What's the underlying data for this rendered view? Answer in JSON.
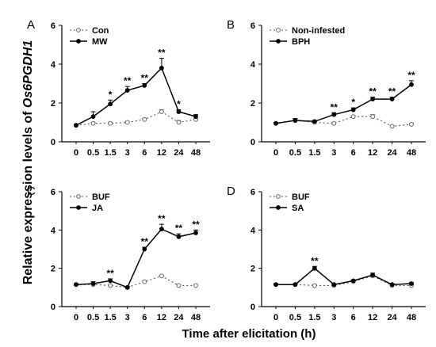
{
  "figure": {
    "ylabel_prefix": "Relative expression levels of ",
    "ylabel_gene": "Os6PGDH1",
    "xlabel": "Time after elicitation (h)"
  },
  "chart_data": [
    {
      "type": "line",
      "panel": "A",
      "categories": [
        "0",
        "0.5",
        "1.5",
        "3",
        "6",
        "12",
        "24",
        "48"
      ],
      "ylim": [
        0,
        6
      ],
      "yticks": [
        0,
        2,
        4,
        6
      ],
      "legend_position": "top-left",
      "series": [
        {
          "name": "Con",
          "style": "dotted-open-circle",
          "values": [
            0.85,
            0.95,
            0.95,
            1.0,
            1.15,
            1.55,
            1.0,
            1.15
          ],
          "errors": [
            0.05,
            0.05,
            0.05,
            0.05,
            0.05,
            0.1,
            0.1,
            0.05
          ]
        },
        {
          "name": "MW",
          "style": "solid-filled-circle",
          "values": [
            0.85,
            1.3,
            1.95,
            2.65,
            2.9,
            3.8,
            1.55,
            1.3
          ],
          "errors": [
            0.05,
            0.25,
            0.2,
            0.2,
            0.1,
            0.5,
            0.1,
            0.1
          ]
        }
      ],
      "significance": [
        "",
        "",
        "*",
        "**",
        "**",
        "**",
        "*",
        ""
      ]
    },
    {
      "type": "line",
      "panel": "B",
      "categories": [
        "0",
        "0.5",
        "1.5",
        "3",
        "6",
        "12",
        "24",
        "48"
      ],
      "ylim": [
        0,
        6
      ],
      "yticks": [
        0,
        2,
        4,
        6
      ],
      "legend_position": "top-left",
      "series": [
        {
          "name": "Non-infested",
          "style": "dotted-open-circle",
          "values": [
            0.95,
            1.1,
            1.0,
            0.95,
            1.3,
            1.3,
            0.8,
            0.9
          ],
          "errors": [
            0.05,
            0.05,
            0.05,
            0.05,
            0.05,
            0.1,
            0.05,
            0.05
          ]
        },
        {
          "name": "BPH",
          "style": "solid-filled-circle",
          "values": [
            0.95,
            1.1,
            1.05,
            1.4,
            1.65,
            2.2,
            2.2,
            2.95
          ],
          "errors": [
            0.05,
            0.1,
            0.05,
            0.1,
            0.1,
            0.1,
            0.1,
            0.2
          ]
        }
      ],
      "significance": [
        "",
        "",
        "",
        "**",
        "*",
        "**",
        "**",
        "**"
      ]
    },
    {
      "type": "line",
      "panel": "C",
      "categories": [
        "0",
        "0.5",
        "1.5",
        "3",
        "6",
        "12",
        "24",
        "48"
      ],
      "ylim": [
        0,
        6
      ],
      "yticks": [
        0,
        2,
        4,
        6
      ],
      "legend_position": "top-left",
      "series": [
        {
          "name": "BUF",
          "style": "dotted-open-circle",
          "values": [
            1.15,
            1.15,
            1.1,
            1.0,
            1.3,
            1.6,
            1.1,
            1.1
          ],
          "errors": [
            0.05,
            0.05,
            0.05,
            0.05,
            0.05,
            0.05,
            0.05,
            0.05
          ]
        },
        {
          "name": "JA",
          "style": "solid-filled-circle",
          "values": [
            1.15,
            1.2,
            1.35,
            1.0,
            3.0,
            4.05,
            3.65,
            3.85
          ],
          "errors": [
            0.05,
            0.1,
            0.1,
            0.05,
            0.1,
            0.25,
            0.15,
            0.15
          ]
        }
      ],
      "significance": [
        "",
        "",
        "**",
        "",
        "**",
        "**",
        "**",
        "**"
      ]
    },
    {
      "type": "line",
      "panel": "D",
      "categories": [
        "0",
        "0.5",
        "1.5",
        "3",
        "6",
        "12",
        "24",
        "48"
      ],
      "ylim": [
        0,
        6
      ],
      "yticks": [
        0,
        2,
        4,
        6
      ],
      "legend_position": "top-left",
      "series": [
        {
          "name": "BUF",
          "style": "dotted-open-circle",
          "values": [
            1.15,
            1.15,
            1.1,
            1.1,
            1.3,
            1.6,
            1.1,
            1.1
          ],
          "errors": [
            0.05,
            0.05,
            0.05,
            0.05,
            0.05,
            0.05,
            0.05,
            0.05
          ]
        },
        {
          "name": "SA",
          "style": "solid-filled-circle",
          "values": [
            1.15,
            1.15,
            2.0,
            1.15,
            1.35,
            1.65,
            1.15,
            1.2
          ],
          "errors": [
            0.05,
            0.05,
            0.1,
            0.05,
            0.05,
            0.1,
            0.05,
            0.05
          ]
        }
      ],
      "significance": [
        "",
        "",
        "**",
        "",
        "",
        "",
        "",
        ""
      ]
    }
  ]
}
